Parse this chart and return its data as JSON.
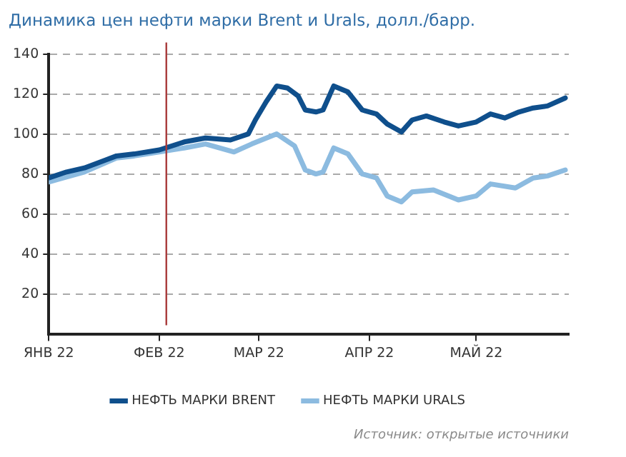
{
  "chart_data": {
    "type": "line",
    "title": "Динамика цен нефти марки Brent и Urals, долл./барр.",
    "annotations": [
      "Источник: открытые источники"
    ],
    "series": [
      {
        "name": "НЕФТЬ МАРКИ BRENT",
        "color": "#0f4f8c",
        "x": [
          "2022-01-01",
          "2022-01-06",
          "2022-01-11",
          "2022-01-17",
          "2022-01-20",
          "2022-01-25",
          "2022-02-01",
          "2022-02-08",
          "2022-02-14",
          "2022-02-21",
          "2022-02-26",
          "2022-02-28",
          "2022-03-03",
          "2022-03-06",
          "2022-03-09",
          "2022-03-12",
          "2022-03-14",
          "2022-03-17",
          "2022-03-19",
          "2022-03-22",
          "2022-03-26",
          "2022-03-30",
          "2022-04-03",
          "2022-04-06",
          "2022-04-10",
          "2022-04-13",
          "2022-04-17",
          "2022-04-22",
          "2022-04-26",
          "2022-05-01",
          "2022-05-05",
          "2022-05-09",
          "2022-05-13",
          "2022-05-17",
          "2022-05-21",
          "2022-05-26"
        ],
        "values": [
          78,
          81,
          83,
          87,
          89,
          90,
          92,
          96,
          98,
          97,
          100,
          107,
          116,
          124,
          123,
          119,
          112,
          111,
          112,
          124,
          121,
          112,
          110,
          105,
          101,
          107,
          109,
          106,
          104,
          106,
          110,
          108,
          111,
          113,
          114,
          118
        ]
      },
      {
        "name": "НЕФТЬ МАРКИ URALS",
        "color": "#8cbbe0",
        "x": [
          "2022-01-01",
          "2022-01-11",
          "2022-01-20",
          "2022-01-25",
          "2022-02-01",
          "2022-02-08",
          "2022-02-14",
          "2022-02-22",
          "2022-02-27",
          "2022-03-06",
          "2022-03-11",
          "2022-03-14",
          "2022-03-17",
          "2022-03-19",
          "2022-03-22",
          "2022-03-26",
          "2022-03-30",
          "2022-04-03",
          "2022-04-06",
          "2022-04-10",
          "2022-04-13",
          "2022-04-19",
          "2022-04-26",
          "2022-05-01",
          "2022-05-05",
          "2022-05-12",
          "2022-05-17",
          "2022-05-21",
          "2022-05-26"
        ],
        "values": [
          76,
          81,
          88,
          89,
          91,
          93,
          95,
          91,
          95,
          100,
          94,
          82,
          80,
          81,
          93,
          90,
          80,
          78,
          69,
          66,
          71,
          72,
          67,
          69,
          75,
          73,
          78,
          79,
          82
        ]
      }
    ],
    "xlim": [
      "2022-01-01",
      "2022-05-27"
    ],
    "xticks": [
      {
        "value": "2022-01-01",
        "label": "ЯНВ 22"
      },
      {
        "value": "2022-02-01",
        "label": "ФЕВ 22"
      },
      {
        "value": "2022-03-01",
        "label": "МАР 22"
      },
      {
        "value": "2022-04-01",
        "label": "АПР 22"
      },
      {
        "value": "2022-05-01",
        "label": "МАЙ 22"
      }
    ],
    "ylim": [
      0,
      140
    ],
    "yticks": [
      20,
      40,
      60,
      80,
      100,
      120,
      140
    ],
    "ref_lines": [
      {
        "axis": "x",
        "value": "2022-02-03",
        "color": "#a83a3a"
      }
    ],
    "grid": "y",
    "legend": "bottom",
    "marker": "none",
    "line_style": "solid"
  }
}
